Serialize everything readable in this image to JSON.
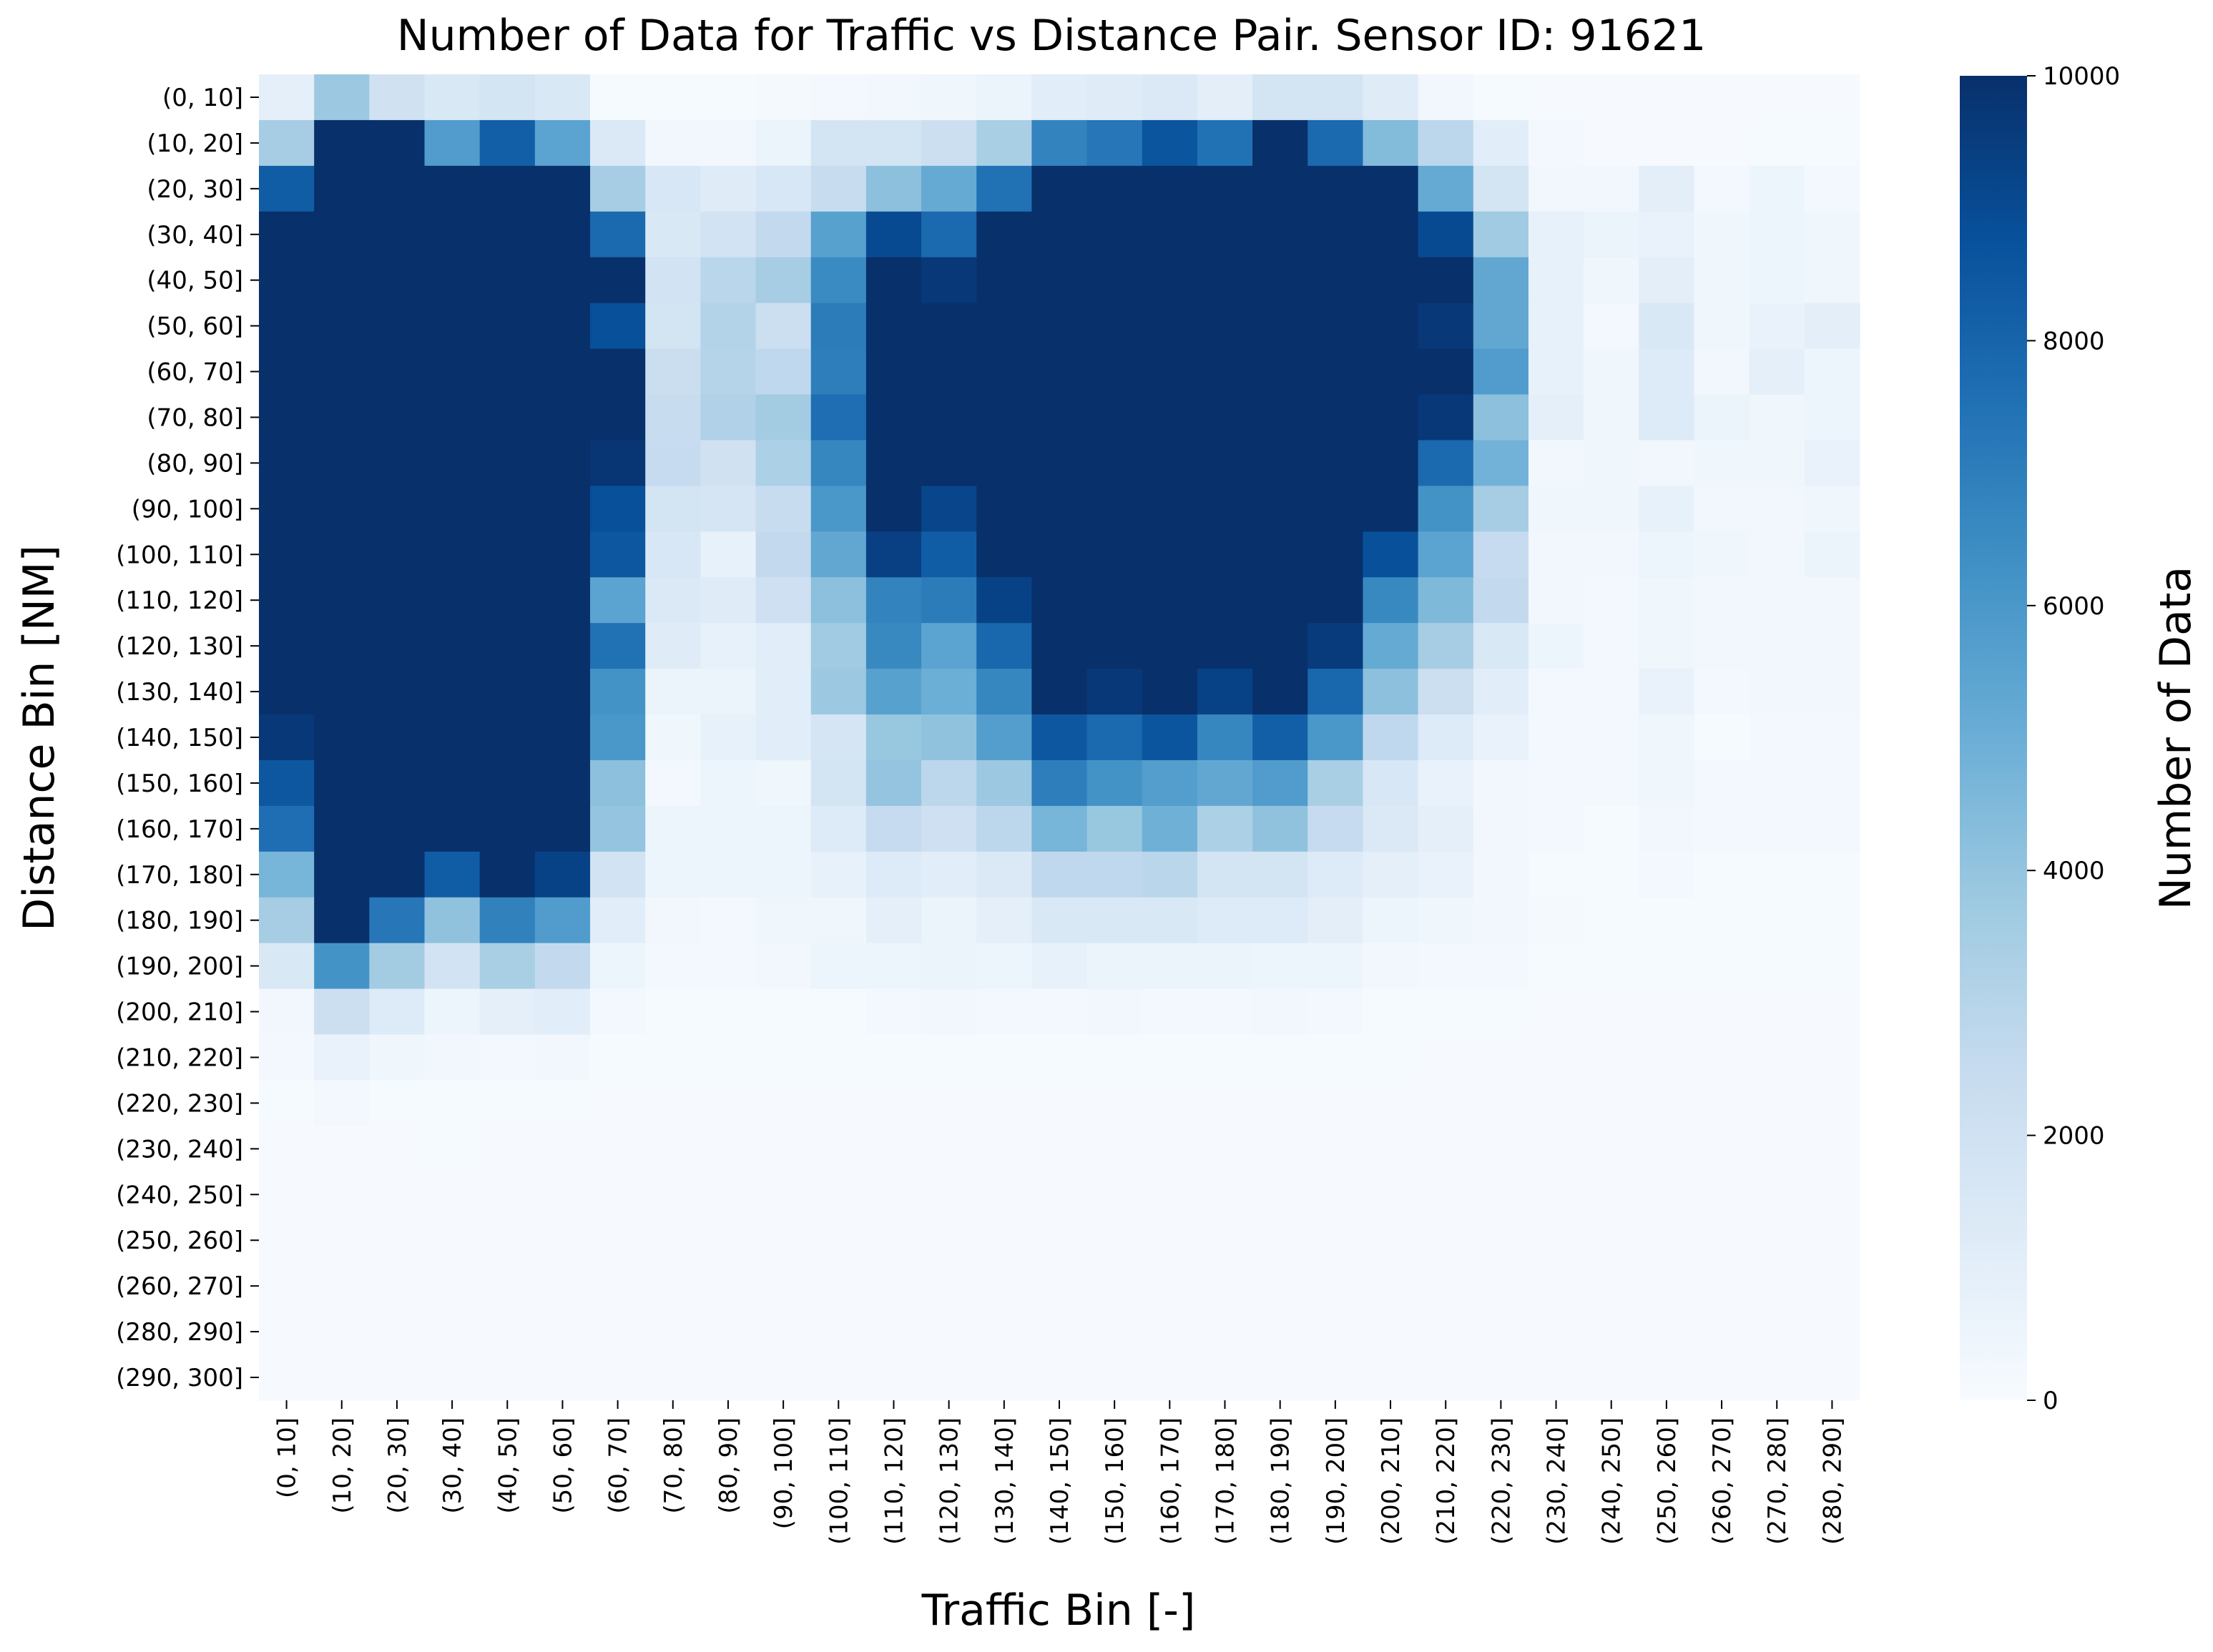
{
  "chart_data": {
    "type": "heatmap",
    "title": "Number of Data for Traffic vs Distance Pair. Sensor ID: 91621",
    "xlabel": "Traffic Bin [-]",
    "ylabel": "Distance Bin [NM]",
    "x_categories": [
      "(0, 10]",
      "(10, 20]",
      "(20, 30]",
      "(30, 40]",
      "(40, 50]",
      "(50, 60]",
      "(60, 70]",
      "(70, 80]",
      "(80, 90]",
      "(90, 100]",
      "(100, 110]",
      "(110, 120]",
      "(120, 130]",
      "(130, 140]",
      "(140, 150]",
      "(150, 160]",
      "(160, 170]",
      "(170, 180]",
      "(180, 190]",
      "(190, 200]",
      "(200, 210]",
      "(210, 220]",
      "(220, 230]",
      "(230, 240]",
      "(240, 250]",
      "(250, 260]",
      "(260, 270]",
      "(270, 280]",
      "(280, 290]"
    ],
    "y_categories": [
      "(0, 10]",
      "(10, 20]",
      "(20, 30]",
      "(30, 40]",
      "(40, 50]",
      "(50, 60]",
      "(60, 70]",
      "(70, 80]",
      "(80, 90]",
      "(90, 100]",
      "(100, 110]",
      "(110, 120]",
      "(120, 130]",
      "(130, 140]",
      "(140, 150]",
      "(150, 160]",
      "(160, 170]",
      "(170, 180]",
      "(180, 190]",
      "(190, 200]",
      "(200, 210]",
      "(210, 220]",
      "(220, 230]",
      "(230, 240]",
      "(240, 250]",
      "(250, 260]",
      "(260, 270]",
      "(280, 290]",
      "(290, 300]"
    ],
    "values": [
      [
        900,
        3800,
        2000,
        1500,
        1800,
        1500,
        100,
        100,
        100,
        150,
        200,
        300,
        400,
        600,
        1100,
        1200,
        1400,
        1000,
        1800,
        1800,
        1200,
        300,
        100,
        50,
        50,
        50,
        50,
        50,
        50
      ],
      [
        3500,
        10000,
        10000,
        5800,
        8200,
        5500,
        1400,
        300,
        300,
        600,
        1800,
        1800,
        2200,
        3400,
        6800,
        7300,
        8600,
        7500,
        10000,
        7800,
        4400,
        2800,
        1100,
        200,
        50,
        50,
        50,
        100,
        100
      ],
      [
        8300,
        10000,
        10000,
        10000,
        10000,
        10000,
        3500,
        1600,
        1200,
        1600,
        2400,
        4200,
        5200,
        7500,
        10000,
        10000,
        10000,
        10000,
        10000,
        10000,
        10000,
        5200,
        1800,
        300,
        300,
        1000,
        200,
        500,
        200
      ],
      [
        10000,
        10000,
        10000,
        10000,
        10000,
        10000,
        7800,
        1500,
        1900,
        2600,
        5600,
        9000,
        7800,
        10000,
        10000,
        10000,
        10000,
        10000,
        10000,
        10000,
        10000,
        9000,
        3700,
        800,
        600,
        700,
        400,
        500,
        400
      ],
      [
        10000,
        10000,
        10000,
        10000,
        10000,
        10000,
        10000,
        1900,
        2900,
        3500,
        6500,
        10000,
        9700,
        10000,
        10000,
        10000,
        10000,
        10000,
        10000,
        10000,
        10000,
        10000,
        5300,
        800,
        400,
        1000,
        400,
        500,
        400
      ],
      [
        10000,
        10000,
        10000,
        10000,
        10000,
        10000,
        8800,
        1800,
        3100,
        2200,
        7100,
        10000,
        10000,
        10000,
        10000,
        10000,
        10000,
        10000,
        10000,
        10000,
        10000,
        9700,
        5300,
        800,
        200,
        1500,
        400,
        700,
        1000
      ],
      [
        10000,
        10000,
        10000,
        10000,
        10000,
        10000,
        10000,
        2300,
        3000,
        2700,
        7000,
        10000,
        10000,
        10000,
        10000,
        10000,
        10000,
        10000,
        10000,
        10000,
        10000,
        10000,
        5800,
        800,
        400,
        1300,
        300,
        900,
        500
      ],
      [
        10000,
        10000,
        10000,
        10000,
        10000,
        10000,
        10000,
        2400,
        3200,
        3600,
        7600,
        10000,
        10000,
        10000,
        10000,
        10000,
        10000,
        10000,
        10000,
        10000,
        10000,
        9700,
        4200,
        900,
        400,
        1300,
        600,
        400,
        500
      ],
      [
        10000,
        10000,
        10000,
        10000,
        10000,
        10000,
        9800,
        2500,
        2000,
        3300,
        6700,
        10000,
        10000,
        10000,
        10000,
        10000,
        10000,
        10000,
        10000,
        10000,
        10000,
        7800,
        4800,
        300,
        400,
        300,
        400,
        400,
        700
      ],
      [
        10000,
        10000,
        10000,
        10000,
        10000,
        10000,
        8800,
        1800,
        1700,
        2400,
        6000,
        10000,
        9200,
        10000,
        10000,
        10000,
        10000,
        10000,
        10000,
        10000,
        10000,
        6200,
        3500,
        400,
        400,
        800,
        300,
        300,
        400
      ],
      [
        10000,
        10000,
        10000,
        10000,
        10000,
        10000,
        8500,
        1600,
        800,
        2600,
        5300,
        9400,
        8300,
        10000,
        10000,
        10000,
        10000,
        10000,
        10000,
        10000,
        8800,
        5500,
        2500,
        300,
        300,
        500,
        400,
        300,
        600
      ],
      [
        10000,
        10000,
        10000,
        10000,
        10000,
        10000,
        5500,
        1400,
        1200,
        2100,
        4200,
        6800,
        7100,
        9300,
        10000,
        10000,
        10000,
        10000,
        10000,
        10000,
        6600,
        4500,
        2600,
        300,
        200,
        400,
        300,
        300,
        300
      ],
      [
        10000,
        10000,
        10000,
        10000,
        10000,
        10000,
        7500,
        1200,
        800,
        1100,
        3700,
        6600,
        5500,
        7900,
        10000,
        10000,
        10000,
        10000,
        10000,
        9600,
        5200,
        3500,
        1500,
        500,
        200,
        400,
        300,
        300,
        300
      ],
      [
        10000,
        10000,
        10000,
        10000,
        10000,
        10000,
        6200,
        600,
        600,
        1100,
        3800,
        5600,
        5000,
        6700,
        10000,
        9700,
        10000,
        9300,
        10000,
        7900,
        4200,
        2200,
        1100,
        200,
        200,
        700,
        200,
        300,
        300
      ],
      [
        9700,
        10000,
        10000,
        10000,
        10000,
        10000,
        6000,
        400,
        800,
        1100,
        1700,
        3900,
        4100,
        5700,
        8500,
        7800,
        8600,
        6700,
        8200,
        6000,
        2700,
        1300,
        700,
        200,
        200,
        400,
        100,
        200,
        200
      ],
      [
        8500,
        10000,
        10000,
        10000,
        10000,
        10000,
        4200,
        200,
        500,
        400,
        1800,
        4000,
        2800,
        3800,
        7000,
        6200,
        5700,
        5300,
        5800,
        3400,
        1600,
        700,
        300,
        200,
        200,
        400,
        200,
        200,
        200
      ],
      [
        7600,
        10000,
        10000,
        10000,
        10000,
        10000,
        4000,
        500,
        500,
        500,
        1300,
        2500,
        2100,
        2800,
        4700,
        3900,
        4900,
        3300,
        4100,
        2500,
        1400,
        900,
        300,
        200,
        100,
        300,
        200,
        200,
        200
      ],
      [
        4700,
        10000,
        10000,
        8300,
        10000,
        9300,
        1900,
        500,
        500,
        500,
        800,
        1300,
        1100,
        1400,
        2700,
        2700,
        2900,
        1800,
        1800,
        1300,
        900,
        700,
        300,
        100,
        100,
        200,
        100,
        100,
        100
      ],
      [
        3500,
        10000,
        7300,
        4100,
        6900,
        5800,
        1100,
        300,
        200,
        400,
        400,
        900,
        600,
        900,
        1500,
        1500,
        1500,
        1300,
        1300,
        1000,
        500,
        400,
        300,
        150,
        100,
        100,
        100,
        100,
        100
      ],
      [
        1500,
        6200,
        3600,
        1900,
        3400,
        2600,
        500,
        200,
        200,
        300,
        500,
        500,
        600,
        500,
        800,
        600,
        600,
        600,
        500,
        500,
        300,
        200,
        200,
        100,
        100,
        100,
        100,
        100,
        100
      ],
      [
        300,
        2200,
        1300,
        500,
        900,
        1100,
        200,
        100,
        100,
        100,
        100,
        200,
        300,
        200,
        200,
        300,
        200,
        200,
        300,
        200,
        100,
        100,
        100,
        50,
        50,
        50,
        50,
        50,
        50
      ],
      [
        200,
        700,
        400,
        300,
        200,
        300,
        100,
        100,
        100,
        100,
        100,
        100,
        100,
        100,
        100,
        100,
        100,
        100,
        100,
        100,
        100,
        50,
        50,
        50,
        50,
        50,
        50,
        50,
        50
      ],
      [
        100,
        200,
        100,
        100,
        100,
        100,
        50,
        50,
        50,
        50,
        50,
        50,
        50,
        50,
        50,
        50,
        50,
        50,
        50,
        50,
        50,
        50,
        50,
        50,
        50,
        50,
        50,
        50,
        50
      ],
      [
        50,
        50,
        50,
        100,
        50,
        50,
        50,
        50,
        50,
        50,
        50,
        50,
        50,
        50,
        50,
        50,
        50,
        50,
        50,
        50,
        50,
        50,
        50,
        50,
        50,
        50,
        50,
        50,
        50
      ],
      [
        50,
        50,
        50,
        50,
        50,
        50,
        50,
        50,
        50,
        50,
        50,
        50,
        50,
        50,
        50,
        50,
        50,
        50,
        50,
        50,
        50,
        50,
        50,
        50,
        50,
        50,
        50,
        50,
        50
      ],
      [
        50,
        50,
        50,
        50,
        50,
        50,
        50,
        50,
        50,
        50,
        50,
        50,
        50,
        50,
        50,
        50,
        50,
        50,
        50,
        50,
        50,
        50,
        50,
        50,
        50,
        50,
        50,
        50,
        50
      ],
      [
        50,
        50,
        50,
        50,
        50,
        50,
        50,
        50,
        50,
        50,
        50,
        50,
        50,
        50,
        50,
        50,
        50,
        50,
        50,
        50,
        50,
        50,
        50,
        50,
        50,
        50,
        50,
        50,
        50
      ],
      [
        50,
        50,
        50,
        50,
        50,
        50,
        50,
        50,
        50,
        50,
        50,
        50,
        50,
        50,
        50,
        50,
        50,
        50,
        50,
        50,
        50,
        50,
        50,
        50,
        50,
        50,
        50,
        50,
        50
      ],
      [
        50,
        50,
        50,
        50,
        50,
        50,
        50,
        50,
        50,
        50,
        50,
        50,
        50,
        50,
        50,
        50,
        50,
        50,
        50,
        50,
        50,
        50,
        50,
        50,
        50,
        50,
        50,
        50,
        50
      ]
    ],
    "colorbar": {
      "label": "Number of Data",
      "min": 0,
      "max": 10000,
      "ticks": [
        0,
        2000,
        4000,
        6000,
        8000,
        10000
      ],
      "colormap": "Blues",
      "color_low": "#f7fbff",
      "color_high": "#08306b"
    }
  }
}
